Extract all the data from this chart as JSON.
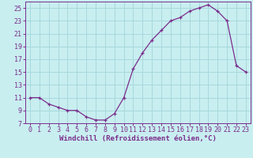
{
  "x": [
    0,
    1,
    2,
    3,
    4,
    5,
    6,
    7,
    8,
    9,
    10,
    11,
    12,
    13,
    14,
    15,
    16,
    17,
    18,
    19,
    20,
    21,
    22,
    23
  ],
  "y": [
    11,
    11,
    10,
    9.5,
    9,
    9,
    8,
    7.5,
    7.5,
    8.5,
    11,
    15.5,
    18,
    20,
    21.5,
    23,
    23.5,
    24.5,
    25,
    25.5,
    24.5,
    23,
    16,
    15
  ],
  "line_color": "#7b2d8b",
  "marker": "+",
  "marker_color": "#7b2d8b",
  "bg_color": "#c8eef0",
  "grid_color": "#a8d8dc",
  "xlabel": "Windchill (Refroidissement éolien,°C)",
  "xlabel_fontsize": 6.5,
  "tick_fontsize": 6.0,
  "xlim": [
    -0.5,
    23.5
  ],
  "ylim": [
    7,
    26
  ],
  "yticks": [
    7,
    9,
    11,
    13,
    15,
    17,
    19,
    21,
    23,
    25
  ],
  "xticks": [
    0,
    1,
    2,
    3,
    4,
    5,
    6,
    7,
    8,
    9,
    10,
    11,
    12,
    13,
    14,
    15,
    16,
    17,
    18,
    19,
    20,
    21,
    22,
    23
  ]
}
